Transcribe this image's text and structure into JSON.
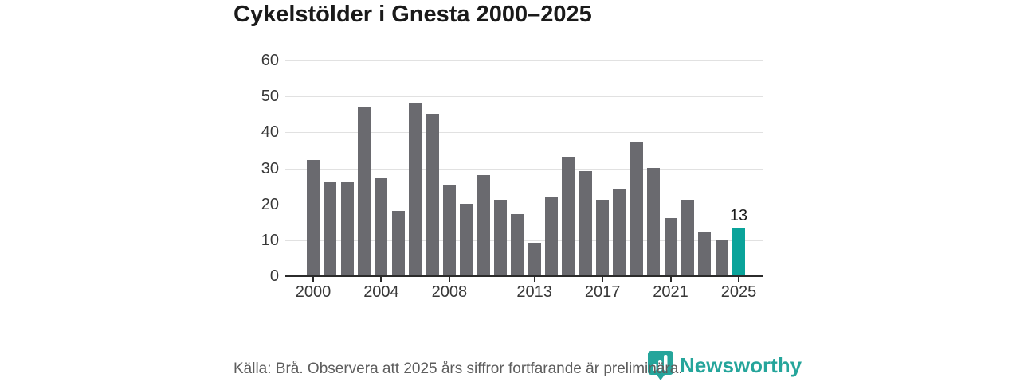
{
  "title": "Cykelstölder i Gnesta 2000–2025",
  "chart_data": {
    "type": "bar",
    "title": "Cykelstölder i Gnesta 2000–2025",
    "categories": [
      2000,
      2001,
      2002,
      2003,
      2004,
      2005,
      2006,
      2007,
      2008,
      2009,
      2010,
      2011,
      2012,
      2013,
      2014,
      2015,
      2016,
      2017,
      2018,
      2019,
      2020,
      2021,
      2022,
      2023,
      2024,
      2025
    ],
    "values": [
      32,
      26,
      26,
      47,
      27,
      18,
      48,
      45,
      25,
      20,
      28,
      21,
      17,
      9,
      22,
      33,
      29,
      21,
      24,
      37,
      30,
      16,
      21,
      12,
      10,
      13
    ],
    "highlight_index": 25,
    "highlight_label": "13",
    "xlabel": "",
    "ylabel": "",
    "ylim": [
      0,
      60
    ],
    "yticks": [
      0,
      10,
      20,
      30,
      40,
      50,
      60
    ],
    "xtick_years": [
      "2000",
      "2004",
      "2008",
      "2013",
      "2017",
      "2021",
      "2025"
    ],
    "grid": "horizontal",
    "legend": "none",
    "bar_color": "#6a6a6f",
    "highlight_color": "#0aa39a",
    "gridline_color": "#e1e1e1",
    "axis_color": "#2b2b2b",
    "tick_label_color": "#383838"
  },
  "footer": {
    "caption": "Källa: Brå. Observera att 2025 års siffror fortfarande är preliminära.",
    "brand": "Newsworthy",
    "brand_color": "#25a59b"
  }
}
